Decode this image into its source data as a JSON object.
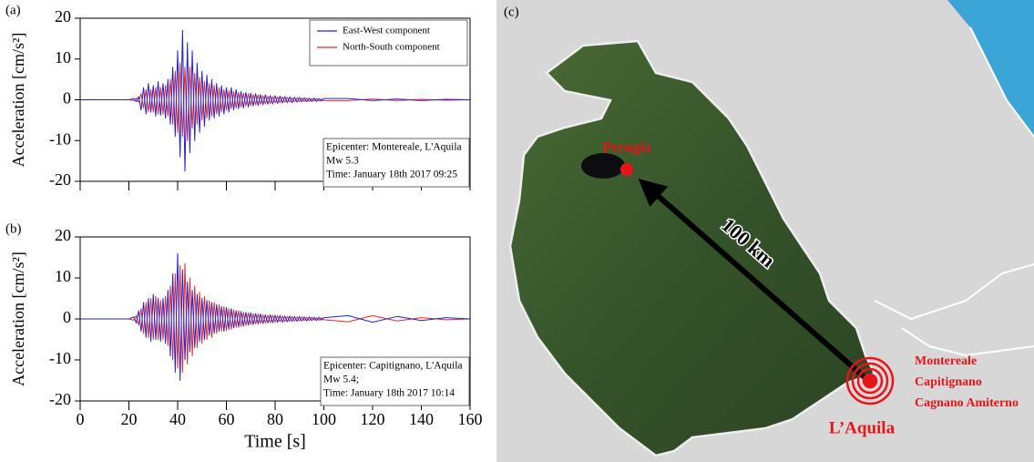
{
  "chart_data": [
    {
      "type": "line",
      "panel_label": "(a)",
      "ylabel": "Acceleration [cm/s²]",
      "xlim": [
        0,
        160
      ],
      "xticks": [
        0,
        20,
        40,
        60,
        80,
        100,
        120,
        140,
        160
      ],
      "show_xtick_labels": false,
      "ylim": [
        -20,
        20
      ],
      "yticks": [
        -20,
        -10,
        0,
        10,
        20
      ],
      "legend": true,
      "x": [
        0,
        10,
        20,
        22,
        23,
        24,
        25,
        26,
        27,
        28,
        29,
        30,
        31,
        32,
        33,
        34,
        35,
        36,
        37,
        38,
        39,
        40,
        41,
        42,
        43,
        44,
        45,
        46,
        47,
        48,
        49,
        50,
        51,
        52,
        53,
        54,
        55,
        56,
        57,
        58,
        59,
        60,
        61,
        62,
        63,
        64,
        65,
        66,
        67,
        68,
        69,
        70,
        71,
        72,
        73,
        74,
        75,
        76,
        77,
        78,
        79,
        80,
        81,
        82,
        83,
        84,
        85,
        86,
        87,
        88,
        89,
        90,
        91,
        92,
        93,
        94,
        95,
        96,
        97,
        98,
        99,
        100,
        110,
        120,
        130,
        140,
        150,
        160
      ],
      "series": [
        {
          "name": "East-West component",
          "color": "#2020d8",
          "values": [
            0,
            0,
            0,
            0.3,
            -0.5,
            0.8,
            -2.5,
            3,
            -3.5,
            4,
            -3,
            3.5,
            -4,
            4.5,
            -3.8,
            4,
            -4.5,
            5,
            -6,
            8,
            -9,
            12,
            -14,
            17,
            -17.5,
            14,
            -13,
            12,
            -10,
            9,
            -8,
            7,
            -6.5,
            6,
            -5,
            5,
            -4.5,
            4,
            -4,
            3.5,
            -3.5,
            3,
            -3,
            3,
            -2.5,
            2.5,
            -2.2,
            2,
            -2,
            1.8,
            -1.8,
            1.6,
            -1.5,
            1.5,
            -1.4,
            1.3,
            -1.2,
            1.2,
            -1.1,
            1,
            -1,
            1,
            -0.9,
            0.9,
            -0.8,
            0.8,
            -0.7,
            0.7,
            -0.7,
            0.6,
            -0.6,
            0.6,
            -0.5,
            0.5,
            -0.5,
            0.4,
            -0.4,
            0.4,
            -0.4,
            0.3,
            -0.3,
            0.3,
            0.3,
            -0.2,
            0.2,
            -0.2,
            0.1,
            0
          ]
        },
        {
          "name": "North-South component",
          "color": "#e8281f",
          "values": [
            0,
            0,
            0,
            -0.2,
            0.4,
            -0.6,
            1.5,
            -2,
            2.5,
            -3,
            2.5,
            -3,
            3,
            -3.5,
            3,
            -3.5,
            3.5,
            -4,
            5,
            -6,
            7,
            -8,
            9,
            -9,
            8,
            -10,
            8,
            -7,
            6.5,
            -6,
            5.5,
            -5,
            4.5,
            -4.5,
            4,
            -4,
            3.5,
            -3.5,
            3,
            -3,
            2.5,
            -2.5,
            2.2,
            -2.2,
            2,
            -2,
            1.8,
            -1.8,
            1.6,
            -1.5,
            1.5,
            -1.4,
            1.3,
            -1.2,
            1.2,
            -1.1,
            1,
            -1,
            0.9,
            -0.9,
            0.8,
            -0.8,
            0.7,
            -0.7,
            0.7,
            -0.6,
            0.6,
            -0.6,
            0.5,
            -0.5,
            0.5,
            -0.5,
            0.4,
            -0.4,
            0.4,
            -0.4,
            0.3,
            -0.3,
            0.3,
            -0.3,
            0.2,
            -0.2,
            -0.2,
            0.2,
            -0.2,
            0.1,
            -0.1,
            0
          ]
        }
      ],
      "annotation": [
        "Epicenter: Montereale, L'Aquila",
        "Mw 5.3",
        "Time: January 18th 2017 09:25"
      ]
    },
    {
      "type": "line",
      "panel_label": "(b)",
      "ylabel": "Acceleration [cm/s²]",
      "xlabel": "Time  [s]",
      "xlim": [
        0,
        160
      ],
      "xticks": [
        0,
        20,
        40,
        60,
        80,
        100,
        120,
        140,
        160
      ],
      "show_xtick_labels": true,
      "ylim": [
        -20,
        20
      ],
      "yticks": [
        -20,
        -10,
        0,
        10,
        20
      ],
      "legend": false,
      "x": [
        0,
        10,
        20,
        22,
        23,
        24,
        25,
        26,
        27,
        28,
        29,
        30,
        31,
        32,
        33,
        34,
        35,
        36,
        37,
        38,
        39,
        40,
        41,
        42,
        43,
        44,
        45,
        46,
        47,
        48,
        49,
        50,
        51,
        52,
        53,
        54,
        55,
        56,
        57,
        58,
        59,
        60,
        61,
        62,
        63,
        64,
        65,
        66,
        67,
        68,
        69,
        70,
        71,
        72,
        73,
        74,
        75,
        76,
        77,
        78,
        79,
        80,
        81,
        82,
        83,
        84,
        85,
        86,
        87,
        88,
        89,
        90,
        91,
        92,
        93,
        94,
        95,
        96,
        97,
        98,
        99,
        100,
        110,
        120,
        130,
        140,
        150,
        160
      ],
      "series": [
        {
          "color": "#2020d8",
          "values": [
            0,
            0,
            0,
            0.5,
            -1,
            2,
            -3,
            4,
            -4.5,
            5,
            -5.5,
            6,
            -5,
            5,
            -5.5,
            5,
            -6,
            7,
            -9,
            11,
            -13,
            16,
            -15,
            12,
            -10,
            9,
            -8,
            7,
            -7,
            6,
            -5.5,
            5,
            -5,
            4.5,
            -4,
            4,
            -3.5,
            3.5,
            -3,
            3,
            -3,
            2.8,
            -2.5,
            2.5,
            -2.2,
            2,
            -2,
            1.8,
            -1.8,
            1.6,
            -1.5,
            1.5,
            -1.4,
            1.3,
            -1.2,
            1.2,
            -1.1,
            1,
            -1,
            1,
            -0.9,
            0.9,
            -0.8,
            0.8,
            -0.8,
            0.7,
            -0.7,
            0.7,
            -0.6,
            0.6,
            -0.6,
            0.6,
            -0.5,
            0.5,
            -0.5,
            0.5,
            -0.4,
            0.4,
            -0.4,
            0.4,
            -0.3,
            0.3,
            0.8,
            -0.8,
            0.6,
            -0.4,
            0.3,
            0
          ]
        },
        {
          "color": "#e8281f",
          "values": [
            0,
            0,
            0,
            -0.3,
            0.8,
            -1.5,
            2.5,
            -3.5,
            4,
            -4.5,
            5,
            -5,
            5.5,
            -5,
            4.5,
            -5,
            5.5,
            -6.5,
            8,
            -10,
            11,
            -12,
            13,
            -13,
            13.5,
            -11,
            10,
            -9,
            8,
            -7,
            6.5,
            -6,
            5.5,
            -5,
            4.5,
            -4.5,
            4,
            -3.5,
            3.5,
            -3,
            3,
            -2.8,
            2.5,
            -2.5,
            2.2,
            -2,
            2,
            -1.8,
            1.6,
            -1.6,
            1.5,
            -1.4,
            1.3,
            -1.2,
            1.2,
            -1.1,
            1,
            -1,
            0.9,
            -0.9,
            0.9,
            -0.8,
            0.8,
            -0.7,
            0.7,
            -0.7,
            0.6,
            -0.6,
            0.6,
            -0.5,
            0.5,
            -0.5,
            0.5,
            -0.4,
            0.4,
            -0.4,
            0.4,
            -0.3,
            0.3,
            -0.3,
            0.3,
            -0.2,
            -0.7,
            0.8,
            -0.5,
            0.3,
            -0.2,
            0
          ]
        }
      ],
      "annotation": [
        "Epicenter: Capitignano, L'Aquila",
        "Mw 5.4;",
        "Time: January 18th 2017  10:14"
      ]
    }
  ],
  "map": {
    "panel_label": "(c)",
    "city": "Perugia",
    "distance": "100 km",
    "epicenters": [
      "Montereale",
      "Capitignano",
      "Cagnano Amiterno"
    ],
    "epicenter_area": "L’Aquila"
  }
}
